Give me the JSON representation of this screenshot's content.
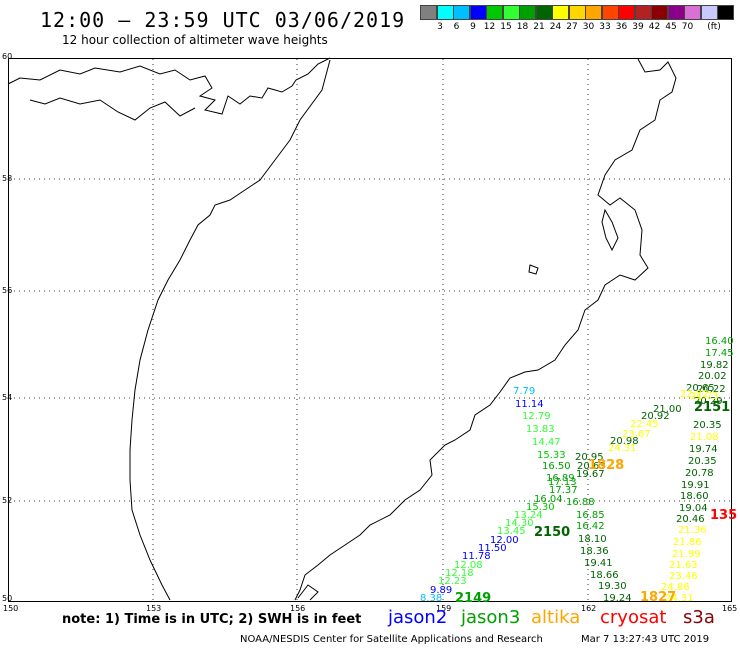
{
  "header": {
    "title": "12:00 – 23:59 UTC 03/06/2019",
    "subtitle": "12 hour collection of altimeter wave heights"
  },
  "legend": {
    "unit": "(ft)",
    "colors": [
      "#808080",
      "#00ffff",
      "#00bfff",
      "#0000ff",
      "#00c800",
      "#32ff32",
      "#00a000",
      "#006400",
      "#ffff00",
      "#ffd700",
      "#ffa500",
      "#ff4500",
      "#ff0000",
      "#b22222",
      "#8b0000",
      "#8b008b",
      "#da70d6",
      "#c8c8ff",
      "#000000"
    ],
    "labels": [
      "3",
      "6",
      "9",
      "12",
      "15",
      "18",
      "21",
      "24",
      "27",
      "30",
      "33",
      "36",
      "39",
      "42",
      "45",
      "70"
    ]
  },
  "axes": {
    "lat_labels": [
      "60",
      "58",
      "56",
      "54",
      "52",
      "50"
    ],
    "lon_labels": [
      "150",
      "153",
      "156",
      "159",
      "162",
      "165"
    ]
  },
  "note": "note: 1) Time is in UTC; 2) SWH is in feet",
  "satellites": [
    {
      "name": "jason2",
      "color": "#0000ff"
    },
    {
      "name": "jason3",
      "color": "#00a000"
    },
    {
      "name": "altika",
      "color": "#ffa500"
    },
    {
      "name": "cryosat",
      "color": "#ff0000"
    },
    {
      "name": "s3a",
      "color": "#8b0000"
    }
  ],
  "footer": {
    "credit": "NOAA/NESDIS Center for Satellite Applications and Research",
    "timestamp": "Mar  7 13:27:43 UTC 2019"
  },
  "observations": [
    {
      "text": "7.79",
      "color": "#00bfff"
    },
    {
      "text": "11.14",
      "color": "#0000ff"
    },
    {
      "text": "12.79",
      "color": "#32ff32"
    },
    {
      "text": "13.83",
      "color": "#32ff32"
    },
    {
      "text": "14.47",
      "color": "#32ff32"
    },
    {
      "text": "15.33",
      "color": "#00c800"
    },
    {
      "text": "16.50",
      "color": "#00a000"
    },
    {
      "text": "16.89",
      "color": "#00a000"
    },
    {
      "text": "17.13",
      "color": "#00a000"
    },
    {
      "text": "17.37",
      "color": "#00a000"
    },
    {
      "text": "16.04",
      "color": "#00a000"
    },
    {
      "text": "15.30",
      "color": "#00c800"
    },
    {
      "text": "13.24",
      "color": "#32ff32"
    },
    {
      "text": "14.30",
      "color": "#32ff32"
    },
    {
      "text": "13.45",
      "color": "#32ff32"
    },
    {
      "text": "12.00",
      "color": "#0000ff"
    },
    {
      "text": "11.50",
      "color": "#0000ff"
    },
    {
      "text": "11.78",
      "color": "#0000ff"
    },
    {
      "text": "12.08",
      "color": "#32ff32"
    },
    {
      "text": "12.18",
      "color": "#32ff32"
    },
    {
      "text": "12.23",
      "color": "#32ff32"
    },
    {
      "text": "9.89",
      "color": "#0000ff"
    },
    {
      "text": "8.38",
      "color": "#00bfff"
    },
    {
      "text": "2149",
      "color": "#00a000",
      "big": true
    },
    {
      "text": "2150",
      "color": "#006400",
      "big": true
    },
    {
      "text": "16.88",
      "color": "#00a000"
    },
    {
      "text": "16.85",
      "color": "#00a000"
    },
    {
      "text": "16.42",
      "color": "#00a000"
    },
    {
      "text": "18.10",
      "color": "#006400"
    },
    {
      "text": "18.36",
      "color": "#006400"
    },
    {
      "text": "19.41",
      "color": "#006400"
    },
    {
      "text": "18.66",
      "color": "#006400"
    },
    {
      "text": "19.30",
      "color": "#006400"
    },
    {
      "text": "19.24",
      "color": "#006400"
    },
    {
      "text": "20.95",
      "color": "#006400"
    },
    {
      "text": "20.98",
      "color": "#006400"
    },
    {
      "text": "19.67",
      "color": "#006400"
    },
    {
      "text": "20.63",
      "color": "#006400"
    },
    {
      "text": "1828",
      "color": "#ffa500",
      "big": true
    },
    {
      "text": "21.00",
      "color": "#006400"
    },
    {
      "text": "20.92",
      "color": "#006400"
    },
    {
      "text": "22.45",
      "color": "#ffff00"
    },
    {
      "text": "23.67",
      "color": "#ffff00"
    },
    {
      "text": "24.31",
      "color": "#ffff00"
    },
    {
      "text": "16.40",
      "color": "#00a000"
    },
    {
      "text": "17.45",
      "color": "#00a000"
    },
    {
      "text": "19.82",
      "color": "#006400"
    },
    {
      "text": "20.02",
      "color": "#006400"
    },
    {
      "text": "20.65",
      "color": "#006400"
    },
    {
      "text": "20.22",
      "color": "#006400"
    },
    {
      "text": "20.29",
      "color": "#006400"
    },
    {
      "text": "2151",
      "color": "#006400",
      "big": true
    },
    {
      "text": "20.35",
      "color": "#006400"
    },
    {
      "text": "21.08",
      "color": "#ffff00"
    },
    {
      "text": "19.74",
      "color": "#006400"
    },
    {
      "text": "20.35",
      "color": "#006400"
    },
    {
      "text": "20.78",
      "color": "#006400"
    },
    {
      "text": "19.91",
      "color": "#006400"
    },
    {
      "text": "18.60",
      "color": "#006400"
    },
    {
      "text": "19.04",
      "color": "#006400"
    },
    {
      "text": "20.46",
      "color": "#006400"
    },
    {
      "text": "135",
      "color": "#ff0000",
      "big": true
    },
    {
      "text": "21.36",
      "color": "#ffff00"
    },
    {
      "text": "21.86",
      "color": "#ffff00"
    },
    {
      "text": "21.99",
      "color": "#ffff00"
    },
    {
      "text": "21.63",
      "color": "#ffff00"
    },
    {
      "text": "23.46",
      "color": "#ffff00"
    },
    {
      "text": "24.86",
      "color": "#ffff00"
    },
    {
      "text": "24.31",
      "color": "#ffff00"
    },
    {
      "text": "1827",
      "color": "#ffa500",
      "big": true
    },
    {
      "text": "22.22",
      "color": "#ffff00"
    },
    {
      "text": "21.73",
      "color": "#ffff00"
    }
  ]
}
